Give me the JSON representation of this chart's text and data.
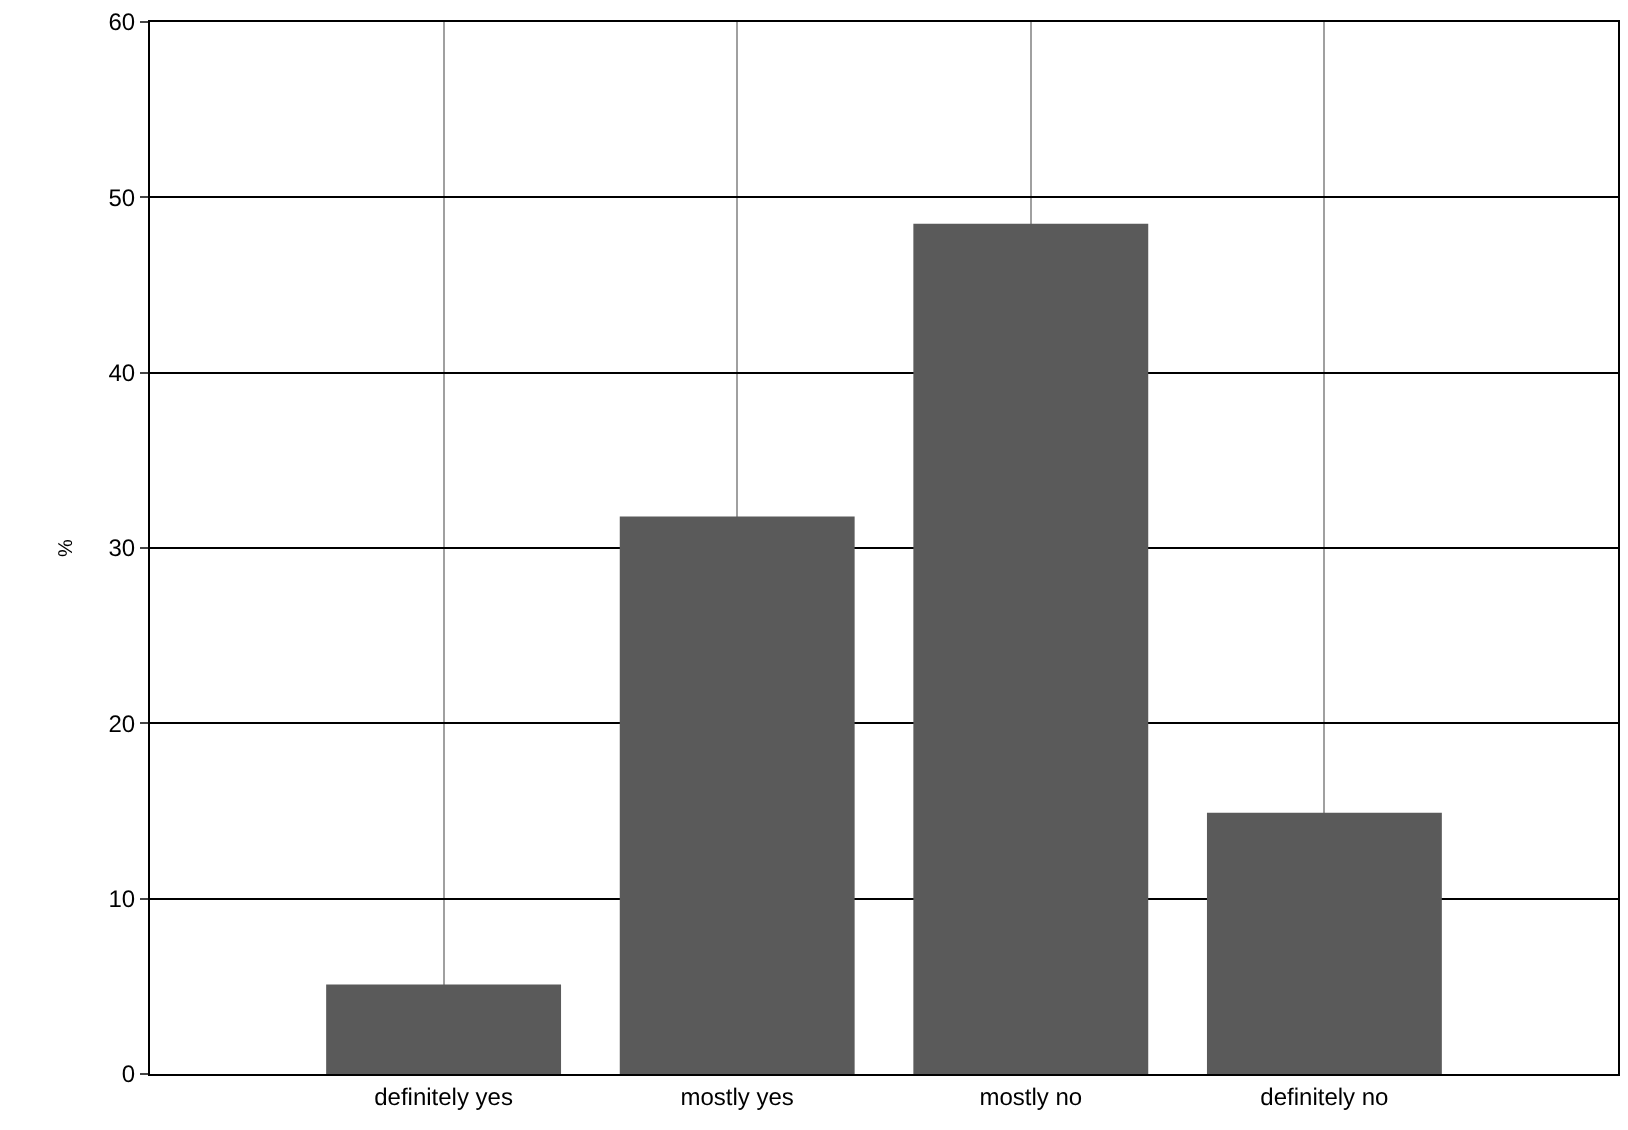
{
  "chart_data": {
    "type": "bar",
    "ylabel": "%",
    "categories": [
      "definitely yes",
      "mostly yes",
      "mostly no",
      "definitely no"
    ],
    "values": [
      5.1,
      31.8,
      48.5,
      14.9
    ],
    "color": "#5a5a5a",
    "ylim": [
      0,
      60
    ],
    "yticks": [
      0,
      10,
      20,
      30,
      40,
      50,
      60
    ],
    "grid": true
  }
}
